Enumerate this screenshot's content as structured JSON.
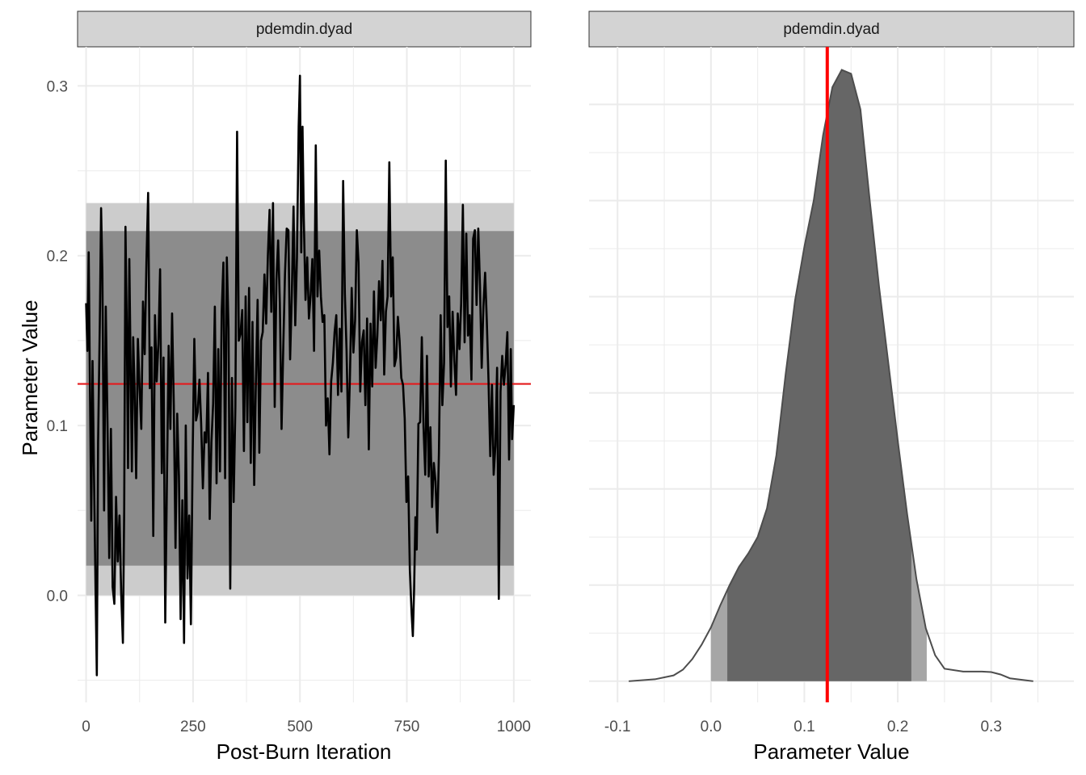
{
  "chart_data": [
    {
      "type": "line",
      "panel": "left",
      "strip_title": "pdemdin.dyad",
      "xlabel": "Post-Burn Iteration",
      "ylabel": "Parameter Value",
      "xlim": [
        -20,
        1040
      ],
      "ylim": [
        -0.063,
        0.323
      ],
      "x_ticks": [
        0,
        250,
        500,
        750,
        1000
      ],
      "x_tick_labels": [
        "0",
        "250",
        "500",
        "750",
        "1000"
      ],
      "y_ticks": [
        0.0,
        0.1,
        0.2,
        0.3
      ],
      "y_tick_labels": [
        "0.0",
        "0.1",
        "0.2",
        "0.3"
      ],
      "grid": true,
      "reference_line": {
        "y": 0.1245,
        "color": "#e41a1c"
      },
      "credible_bands": [
        {
          "level": "outer",
          "ymin": 0.0,
          "ymax": 0.231,
          "xmin": 0,
          "xmax": 1000,
          "color": "#cccccc"
        },
        {
          "level": "inner",
          "ymin": 0.0175,
          "ymax": 0.2145,
          "xmin": 0,
          "xmax": 1000,
          "color": "#8c8c8c"
        }
      ],
      "trace_color": "#000000",
      "trace_points": [
        [
          0,
          0.172
        ],
        [
          3,
          0.144
        ],
        [
          6,
          0.202
        ],
        [
          9,
          0.12
        ],
        [
          12,
          0.044
        ],
        [
          15,
          0.138
        ],
        [
          19,
          0.06
        ],
        [
          22,
          0.004
        ],
        [
          25,
          -0.047
        ],
        [
          28,
          0.09
        ],
        [
          32,
          0.16
        ],
        [
          35,
          0.228
        ],
        [
          38,
          0.19
        ],
        [
          42,
          0.05
        ],
        [
          46,
          0.17
        ],
        [
          50,
          0.1
        ],
        [
          54,
          0.022
        ],
        [
          58,
          0.098
        ],
        [
          62,
          0.005
        ],
        [
          66,
          -0.005
        ],
        [
          70,
          0.058
        ],
        [
          74,
          0.02
        ],
        [
          78,
          0.047
        ],
        [
          82,
          0.001
        ],
        [
          86,
          -0.028
        ],
        [
          89,
          0.05
        ],
        [
          92,
          0.217
        ],
        [
          95,
          0.16
        ],
        [
          98,
          0.075
        ],
        [
          101,
          0.198
        ],
        [
          104,
          0.135
        ],
        [
          107,
          0.073
        ],
        [
          110,
          0.152
        ],
        [
          113,
          0.125
        ],
        [
          117,
          0.069
        ],
        [
          121,
          0.151
        ],
        [
          125,
          0.122
        ],
        [
          129,
          0.098
        ],
        [
          133,
          0.173
        ],
        [
          137,
          0.142
        ],
        [
          141,
          0.196
        ],
        [
          145,
          0.237
        ],
        [
          149,
          0.122
        ],
        [
          153,
          0.146
        ],
        [
          157,
          0.035
        ],
        [
          161,
          0.165
        ],
        [
          165,
          0.126
        ],
        [
          169,
          0.148
        ],
        [
          173,
          0.192
        ],
        [
          177,
          0.072
        ],
        [
          181,
          0.14
        ],
        [
          185,
          -0.016
        ],
        [
          189,
          0.068
        ],
        [
          193,
          0.147
        ],
        [
          197,
          0.098
        ],
        [
          201,
          0.166
        ],
        [
          205,
          0.112
        ],
        [
          209,
          0.028
        ],
        [
          213,
          0.107
        ],
        [
          217,
          0.07
        ],
        [
          221,
          -0.014
        ],
        [
          225,
          0.056
        ],
        [
          229,
          -0.028
        ],
        [
          233,
          0.1
        ],
        [
          237,
          0.01
        ],
        [
          241,
          0.047
        ],
        [
          245,
          -0.017
        ],
        [
          249,
          0.081
        ],
        [
          253,
          0.151
        ],
        [
          257,
          0.103
        ],
        [
          261,
          0.108
        ],
        [
          265,
          0.127
        ],
        [
          269,
          0.101
        ],
        [
          273,
          0.063
        ],
        [
          277,
          0.096
        ],
        [
          281,
          0.09
        ],
        [
          285,
          0.131
        ],
        [
          289,
          0.045
        ],
        [
          293,
          0.09
        ],
        [
          297,
          0.113
        ],
        [
          301,
          0.17
        ],
        [
          305,
          0.066
        ],
        [
          309,
          0.145
        ],
        [
          313,
          0.073
        ],
        [
          317,
          0.167
        ],
        [
          321,
          0.196
        ],
        [
          325,
          0.069
        ],
        [
          329,
          0.199
        ],
        [
          333,
          0.157
        ],
        [
          337,
          0.004
        ],
        [
          341,
          0.128
        ],
        [
          345,
          0.055
        ],
        [
          349,
          0.111
        ],
        [
          353,
          0.273
        ],
        [
          357,
          0.15
        ],
        [
          361,
          0.154
        ],
        [
          365,
          0.168
        ],
        [
          369,
          0.085
        ],
        [
          373,
          0.176
        ],
        [
          377,
          0.102
        ],
        [
          381,
          0.181
        ],
        [
          385,
          0.078
        ],
        [
          389,
          0.161
        ],
        [
          393,
          0.065
        ],
        [
          397,
          0.127
        ],
        [
          401,
          0.174
        ],
        [
          405,
          0.084
        ],
        [
          409,
          0.15
        ],
        [
          413,
          0.155
        ],
        [
          417,
          0.189
        ],
        [
          421,
          0.16
        ],
        [
          425,
          0.2
        ],
        [
          429,
          0.227
        ],
        [
          433,
          0.167
        ],
        [
          437,
          0.231
        ],
        [
          441,
          0.111
        ],
        [
          445,
          0.186
        ],
        [
          449,
          0.209
        ],
        [
          453,
          0.172
        ],
        [
          457,
          0.098
        ],
        [
          461,
          0.146
        ],
        [
          465,
          0.189
        ],
        [
          469,
          0.216
        ],
        [
          473,
          0.215
        ],
        [
          477,
          0.139
        ],
        [
          481,
          0.177
        ],
        [
          485,
          0.229
        ],
        [
          489,
          0.159
        ],
        [
          493,
          0.199
        ],
        [
          497,
          0.276
        ],
        [
          500,
          0.306
        ],
        [
          503,
          0.202
        ],
        [
          506,
          0.276
        ],
        [
          509,
          0.222
        ],
        [
          513,
          0.174
        ],
        [
          517,
          0.199
        ],
        [
          521,
          0.163
        ],
        [
          525,
          0.177
        ],
        [
          529,
          0.198
        ],
        [
          533,
          0.144
        ],
        [
          537,
          0.265
        ],
        [
          541,
          0.176
        ],
        [
          545,
          0.203
        ],
        [
          549,
          0.176
        ],
        [
          553,
          0.161
        ],
        [
          557,
          0.165
        ],
        [
          561,
          0.1
        ],
        [
          565,
          0.116
        ],
        [
          569,
          0.083
        ],
        [
          573,
          0.126
        ],
        [
          577,
          0.137
        ],
        [
          581,
          0.155
        ],
        [
          585,
          0.165
        ],
        [
          589,
          0.118
        ],
        [
          593,
          0.157
        ],
        [
          597,
          0.12
        ],
        [
          601,
          0.244
        ],
        [
          605,
          0.178
        ],
        [
          609,
          0.144
        ],
        [
          613,
          0.093
        ],
        [
          617,
          0.13
        ],
        [
          621,
          0.181
        ],
        [
          625,
          0.143
        ],
        [
          629,
          0.162
        ],
        [
          633,
          0.215
        ],
        [
          637,
          0.196
        ],
        [
          641,
          0.12
        ],
        [
          645,
          0.149
        ],
        [
          649,
          0.156
        ],
        [
          653,
          0.112
        ],
        [
          657,
          0.163
        ],
        [
          661,
          0.086
        ],
        [
          665,
          0.16
        ],
        [
          669,
          0.123
        ],
        [
          673,
          0.179
        ],
        [
          677,
          0.134
        ],
        [
          681,
          0.153
        ],
        [
          685,
          0.185
        ],
        [
          689,
          0.162
        ],
        [
          693,
          0.197
        ],
        [
          697,
          0.13
        ],
        [
          701,
          0.167
        ],
        [
          705,
          0.176
        ],
        [
          709,
          0.255
        ],
        [
          713,
          0.176
        ],
        [
          717,
          0.199
        ],
        [
          721,
          0.135
        ],
        [
          725,
          0.14
        ],
        [
          729,
          0.164
        ],
        [
          733,
          0.15
        ],
        [
          737,
          0.128
        ],
        [
          741,
          0.124
        ],
        [
          745,
          0.104
        ],
        [
          749,
          0.055
        ],
        [
          753,
          0.07
        ],
        [
          757,
          0.015
        ],
        [
          761,
          -0.01
        ],
        [
          764,
          -0.024
        ],
        [
          767,
          0.004
        ],
        [
          770,
          0.046
        ],
        [
          773,
          0.027
        ],
        [
          777,
          0.101
        ],
        [
          781,
          0.102
        ],
        [
          785,
          0.152
        ],
        [
          789,
          0.099
        ],
        [
          793,
          0.071
        ],
        [
          797,
          0.141
        ],
        [
          801,
          0.07
        ],
        [
          805,
          0.099
        ],
        [
          809,
          0.052
        ],
        [
          813,
          0.078
        ],
        [
          817,
          0.067
        ],
        [
          821,
          0.037
        ],
        [
          825,
          0.084
        ],
        [
          829,
          0.165
        ],
        [
          833,
          0.112
        ],
        [
          837,
          0.137
        ],
        [
          841,
          0.256
        ],
        [
          845,
          0.158
        ],
        [
          849,
          0.176
        ],
        [
          853,
          0.123
        ],
        [
          857,
          0.167
        ],
        [
          861,
          0.138
        ],
        [
          865,
          0.118
        ],
        [
          869,
          0.166
        ],
        [
          873,
          0.145
        ],
        [
          877,
          0.172
        ],
        [
          881,
          0.23
        ],
        [
          885,
          0.149
        ],
        [
          889,
          0.213
        ],
        [
          893,
          0.153
        ],
        [
          897,
          0.165
        ],
        [
          901,
          0.127
        ],
        [
          905,
          0.21
        ],
        [
          909,
          0.215
        ],
        [
          913,
          0.171
        ],
        [
          917,
          0.216
        ],
        [
          921,
          0.182
        ],
        [
          925,
          0.134
        ],
        [
          929,
          0.17
        ],
        [
          933,
          0.19
        ],
        [
          937,
          0.161
        ],
        [
          941,
          0.126
        ],
        [
          945,
          0.082
        ],
        [
          949,
          0.124
        ],
        [
          953,
          0.071
        ],
        [
          957,
          0.088
        ],
        [
          961,
          0.134
        ],
        [
          965,
          -0.002
        ],
        [
          969,
          0.12
        ],
        [
          973,
          0.141
        ],
        [
          977,
          0.124
        ],
        [
          981,
          0.136
        ],
        [
          985,
          0.155
        ],
        [
          989,
          0.08
        ],
        [
          993,
          0.145
        ],
        [
          996,
          0.092
        ],
        [
          1000,
          0.112
        ]
      ]
    },
    {
      "type": "area",
      "panel": "right",
      "strip_title": "pdemdin.dyad",
      "xlabel": "Parameter Value",
      "ylabel": "",
      "xlim": [
        -0.1305,
        0.3885
      ],
      "ylim": [
        -0.22,
        6.6
      ],
      "x_ticks": [
        -0.1,
        0.0,
        0.1,
        0.2,
        0.3
      ],
      "x_tick_labels": [
        "-0.1",
        "0.0",
        "0.1",
        "0.2",
        "0.3"
      ],
      "y_ticks": [
        0,
        1,
        2,
        3,
        4,
        5,
        6
      ],
      "y_tick_labels": [],
      "grid": true,
      "reference_line": {
        "x": 0.1245,
        "color": "#ff0000"
      },
      "density_color": "#666666",
      "interval_outer": {
        "xmin": 0.0,
        "xmax": 0.231,
        "color": "#a6a6a6"
      },
      "interval_inner": {
        "xmin": 0.0175,
        "xmax": 0.2145,
        "color": "#666666"
      },
      "density_points": [
        [
          -0.088,
          0.0
        ],
        [
          -0.06,
          0.02
        ],
        [
          -0.04,
          0.06
        ],
        [
          -0.03,
          0.12
        ],
        [
          -0.02,
          0.23
        ],
        [
          -0.01,
          0.38
        ],
        [
          0.0,
          0.56
        ],
        [
          0.01,
          0.79
        ],
        [
          0.02,
          1.0
        ],
        [
          0.03,
          1.19
        ],
        [
          0.04,
          1.33
        ],
        [
          0.05,
          1.5
        ],
        [
          0.06,
          1.8
        ],
        [
          0.07,
          2.35
        ],
        [
          0.08,
          3.2
        ],
        [
          0.09,
          3.96
        ],
        [
          0.1,
          4.52
        ],
        [
          0.11,
          5.0
        ],
        [
          0.12,
          5.68
        ],
        [
          0.13,
          6.18
        ],
        [
          0.14,
          6.36
        ],
        [
          0.15,
          6.32
        ],
        [
          0.16,
          5.95
        ],
        [
          0.17,
          5.0
        ],
        [
          0.18,
          4.1
        ],
        [
          0.19,
          3.3
        ],
        [
          0.2,
          2.5
        ],
        [
          0.21,
          1.74
        ],
        [
          0.22,
          1.06
        ],
        [
          0.23,
          0.55
        ],
        [
          0.24,
          0.27
        ],
        [
          0.25,
          0.13
        ],
        [
          0.27,
          0.1
        ],
        [
          0.29,
          0.1
        ],
        [
          0.3,
          0.095
        ],
        [
          0.31,
          0.07
        ],
        [
          0.32,
          0.03
        ],
        [
          0.345,
          0.0
        ]
      ]
    }
  ]
}
